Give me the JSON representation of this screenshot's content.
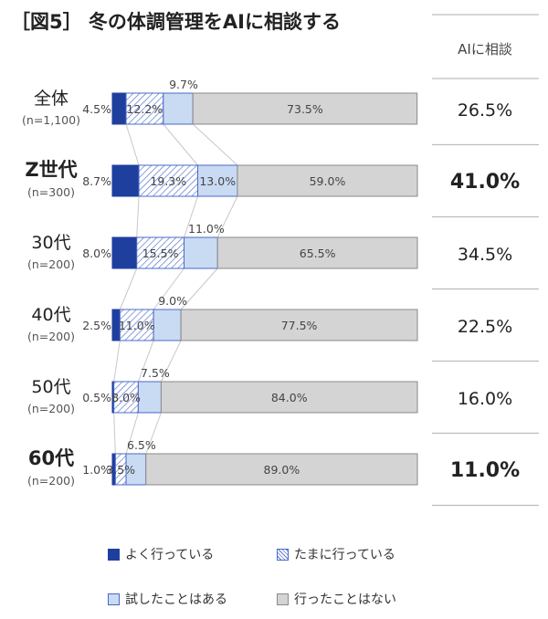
{
  "chart_data": {
    "type": "bar",
    "title": "［図5］ 冬の体調管理をAIに相談する",
    "categories": [
      "全体",
      "Z世代",
      "30代",
      "40代",
      "50代",
      "60代"
    ],
    "category_notes": [
      "(n=1,100)",
      "(n=300)",
      "(n=200)",
      "(n=200)",
      "(n=200)",
      "(n=200)"
    ],
    "emphasized": [
      false,
      true,
      false,
      false,
      false,
      true
    ],
    "series": [
      {
        "name": "よく行っている",
        "values": [
          4.5,
          8.7,
          8.0,
          2.5,
          0.5,
          1.0
        ],
        "color": "#1f3f9f"
      },
      {
        "name": "たまに行っている",
        "values": [
          12.2,
          19.3,
          15.5,
          11.0,
          8.0,
          3.5
        ],
        "color": "#4a68c8"
      },
      {
        "name": "試したことはある",
        "values": [
          9.7,
          13.0,
          11.0,
          9.0,
          7.5,
          6.5
        ],
        "color": "#c9daf3"
      },
      {
        "name": "行ったことはない",
        "values": [
          73.5,
          59.0,
          65.5,
          77.5,
          84.0,
          89.0
        ],
        "color": "#d4d4d4"
      }
    ],
    "value_labels": [
      [
        "4.5%",
        "12.2%",
        "9.7%",
        "73.5%"
      ],
      [
        "8.7%",
        "19.3%",
        "13.0%",
        "59.0%"
      ],
      [
        "8.0%",
        "15.5%",
        "11.0%",
        "65.5%"
      ],
      [
        "2.5%",
        "11.0%",
        "9.0%",
        "77.5%"
      ],
      [
        "0.5%",
        "8.0%",
        "7.5%",
        "84.0%"
      ],
      [
        "1.0%",
        "3.5%",
        "6.5%",
        "89.0%"
      ]
    ],
    "side_column": {
      "header": "AIに相談",
      "values": [
        "26.5%",
        "41.0%",
        "34.5%",
        "22.5%",
        "16.0%",
        "11.0%"
      ]
    },
    "stacked": true,
    "orientation": "horizontal",
    "xlim": [
      0,
      100
    ],
    "legend_position": "bottom"
  }
}
